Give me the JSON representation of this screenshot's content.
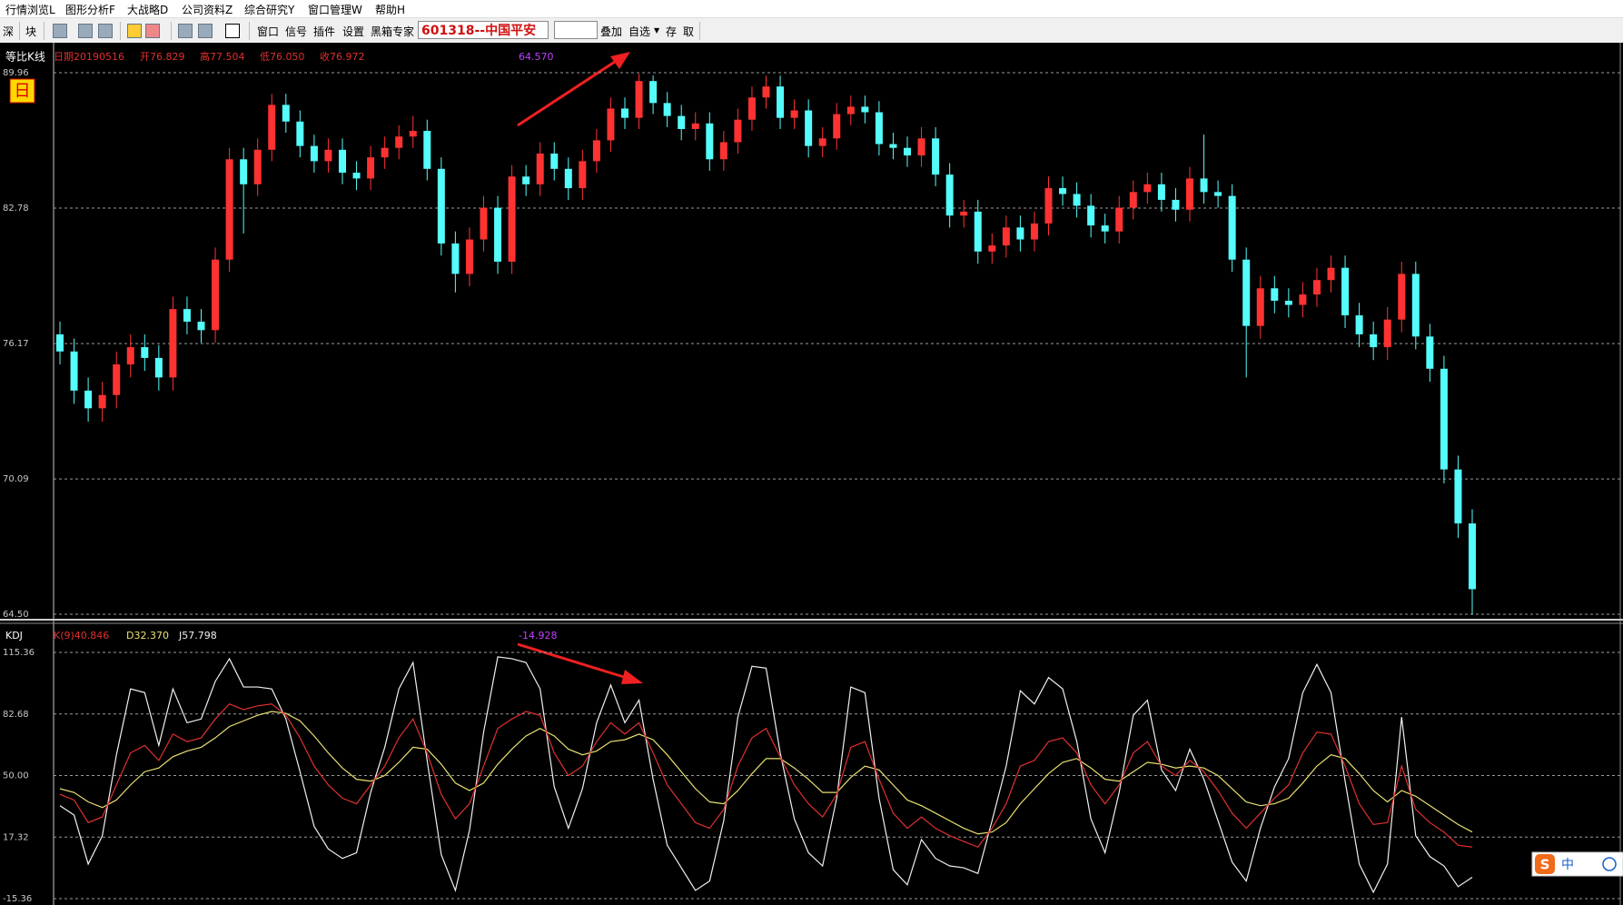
{
  "menu": [
    "行情浏览L",
    "图形分析F",
    "大战略D",
    "公司资料Z",
    "综合研究Y",
    "窗口管理W",
    "帮助H"
  ],
  "toolbar": {
    "left": [
      "深",
      "块"
    ],
    "tools": [
      "窗口",
      "信号",
      "插件",
      "设置",
      "黑箱专家"
    ],
    "stock": "601318--中国平安",
    "right": [
      "叠加",
      "自选",
      "存",
      "取"
    ]
  },
  "ime": {
    "logo": "S",
    "mode": "中"
  },
  "chart_data": [
    {
      "type": "candlestick",
      "title": "等比K线",
      "badge": "日",
      "info": [
        "日期20190516",
        "开76.829",
        "高77.504",
        "低76.050",
        "收76.972"
      ],
      "annotation": "64.570",
      "log_scale": true,
      "grid": true,
      "up_color": "#ff3232",
      "down_color": "#54fcfc",
      "ylim": [
        64.5,
        89.96
      ],
      "yticks": [
        89.96,
        82.78,
        76.17,
        70.09,
        {
          "value": 64.5,
          "label": "64.50"
        }
      ],
      "open": [
        76.6,
        75.8,
        74.0,
        73.2,
        73.8,
        75.2,
        76.0,
        75.5,
        74.6,
        77.8,
        77.2,
        76.8,
        80.2,
        85.3,
        84.0,
        85.8,
        88.2,
        87.3,
        86.0,
        85.2,
        85.8,
        84.6,
        84.3,
        85.4,
        85.9,
        86.5,
        86.8,
        84.8,
        81.0,
        79.5,
        81.2,
        82.8,
        80.1,
        84.4,
        84.0,
        85.6,
        84.8,
        83.8,
        85.2,
        86.3,
        88.0,
        87.5,
        89.5,
        88.3,
        87.6,
        86.9,
        87.2,
        85.3,
        86.2,
        87.4,
        88.6,
        89.2,
        87.5,
        87.9,
        86.0,
        86.4,
        87.7,
        88.1,
        87.8,
        86.1,
        85.9,
        85.5,
        86.4,
        84.5,
        82.4,
        82.6,
        80.6,
        80.9,
        81.8,
        81.2,
        82.0,
        83.8,
        83.5,
        82.9,
        81.9,
        81.6,
        82.8,
        83.6,
        84.0,
        83.2,
        82.7,
        84.3,
        83.6,
        83.4,
        80.2,
        77.0,
        78.8,
        78.2,
        78.0,
        78.5,
        79.2,
        79.8,
        77.5,
        76.6,
        76.0,
        77.3,
        79.5,
        76.5,
        75.0,
        70.5,
        68.2
      ],
      "high": [
        77.2,
        76.4,
        74.6,
        74.4,
        75.8,
        76.6,
        76.6,
        76.1,
        78.4,
        78.4,
        77.8,
        80.8,
        85.9,
        85.9,
        86.4,
        88.8,
        88.8,
        87.9,
        86.6,
        86.4,
        86.4,
        85.2,
        86.0,
        86.5,
        87.1,
        87.6,
        87.4,
        85.4,
        81.6,
        81.8,
        83.4,
        83.4,
        85.0,
        85.0,
        86.2,
        86.2,
        85.4,
        85.8,
        86.9,
        88.6,
        88.6,
        89.9,
        89.8,
        88.9,
        88.2,
        87.8,
        87.8,
        86.8,
        88.0,
        89.2,
        89.8,
        89.8,
        88.5,
        88.5,
        87.0,
        88.3,
        88.7,
        88.7,
        88.4,
        86.7,
        86.5,
        87.0,
        87.0,
        85.1,
        83.2,
        83.2,
        81.5,
        82.4,
        82.4,
        82.6,
        84.4,
        84.4,
        84.1,
        83.5,
        82.5,
        83.4,
        84.2,
        84.6,
        84.6,
        83.8,
        84.9,
        86.6,
        84.2,
        84.0,
        80.8,
        79.4,
        79.4,
        78.8,
        79.1,
        79.8,
        80.4,
        80.4,
        78.1,
        77.2,
        77.9,
        80.1,
        80.1,
        77.1,
        75.6,
        71.1,
        68.8
      ],
      "low": [
        75.2,
        73.4,
        72.6,
        72.6,
        73.2,
        74.6,
        74.9,
        74.0,
        74.0,
        76.6,
        76.2,
        76.2,
        79.6,
        81.5,
        83.4,
        85.2,
        86.7,
        85.4,
        84.6,
        84.6,
        84.0,
        83.7,
        83.7,
        84.8,
        85.3,
        85.9,
        84.2,
        80.4,
        78.6,
        78.9,
        80.6,
        79.5,
        79.5,
        83.4,
        83.4,
        84.2,
        83.2,
        83.2,
        84.6,
        85.7,
        86.9,
        86.9,
        87.7,
        87.0,
        86.3,
        86.3,
        84.7,
        84.7,
        85.6,
        86.8,
        88.0,
        86.9,
        86.9,
        85.4,
        85.4,
        85.8,
        87.1,
        87.2,
        85.5,
        85.3,
        84.9,
        84.9,
        83.9,
        81.8,
        81.8,
        80.0,
        80.0,
        80.3,
        80.6,
        80.6,
        81.4,
        82.9,
        82.3,
        81.3,
        81.0,
        81.0,
        82.2,
        83.0,
        82.6,
        82.1,
        82.1,
        83.0,
        82.8,
        79.6,
        74.6,
        76.4,
        77.6,
        77.4,
        77.4,
        77.9,
        78.6,
        76.9,
        76.0,
        75.4,
        75.4,
        76.7,
        75.9,
        74.4,
        69.9,
        67.6,
        64.5
      ],
      "close": [
        75.8,
        74.0,
        73.2,
        73.8,
        75.2,
        76.0,
        75.5,
        74.6,
        77.8,
        77.2,
        76.8,
        80.2,
        85.3,
        84.0,
        85.8,
        88.2,
        87.3,
        86.0,
        85.2,
        85.8,
        84.6,
        84.3,
        85.4,
        85.9,
        86.5,
        86.8,
        84.8,
        81.0,
        79.5,
        81.2,
        82.8,
        80.1,
        84.4,
        84.0,
        85.6,
        84.8,
        83.8,
        85.2,
        86.3,
        88.0,
        87.5,
        89.5,
        88.3,
        87.6,
        86.9,
        87.2,
        85.3,
        86.2,
        87.4,
        88.6,
        89.2,
        87.5,
        87.9,
        86.0,
        86.4,
        87.7,
        88.1,
        87.8,
        86.1,
        85.9,
        85.5,
        86.4,
        84.5,
        82.4,
        82.6,
        80.6,
        80.9,
        81.8,
        81.2,
        82.0,
        83.8,
        83.5,
        82.9,
        81.9,
        81.6,
        82.8,
        83.6,
        84.0,
        83.2,
        82.7,
        84.3,
        83.6,
        83.4,
        80.2,
        77.0,
        78.8,
        78.2,
        78.0,
        78.5,
        79.2,
        79.8,
        77.5,
        76.6,
        76.0,
        77.3,
        79.5,
        76.5,
        75.0,
        70.5,
        68.2,
        65.5
      ]
    },
    {
      "type": "line",
      "title": "KDJ",
      "annotation": "-14.928",
      "grid": true,
      "ylim": [
        -15.36,
        115.36
      ],
      "yticks": [
        115.36,
        82.68,
        {
          "value": 50,
          "label": "50.00"
        },
        17.32,
        -15.36
      ],
      "series": [
        {
          "name": "K(9)40.846",
          "color": "#e03030",
          "values": [
            40,
            37,
            25,
            28,
            45,
            62,
            66,
            58,
            72,
            68,
            70,
            80,
            88,
            85,
            87,
            88,
            82,
            70,
            55,
            45,
            38,
            35,
            45,
            55,
            70,
            80,
            62,
            40,
            27,
            35,
            55,
            75,
            80,
            84,
            82,
            62,
            50,
            55,
            68,
            78,
            72,
            78,
            62,
            45,
            35,
            25,
            22,
            32,
            55,
            70,
            75,
            60,
            45,
            35,
            28,
            40,
            65,
            68,
            48,
            30,
            22,
            28,
            22,
            18,
            15,
            12,
            22,
            35,
            55,
            58,
            68,
            70,
            62,
            45,
            35,
            45,
            62,
            68,
            55,
            50,
            58,
            52,
            42,
            30,
            22,
            30,
            38,
            45,
            62,
            73,
            72,
            55,
            35,
            24,
            25,
            55,
            32,
            25,
            20,
            13,
            12
          ]
        },
        {
          "name": "D32.370",
          "color": "#e8e070",
          "values": [
            43,
            41,
            36,
            33,
            37,
            45,
            52,
            54,
            60,
            63,
            65,
            70,
            76,
            79,
            82,
            84,
            83,
            79,
            71,
            62,
            54,
            48,
            47,
            50,
            57,
            65,
            64,
            56,
            46,
            42,
            46,
            56,
            64,
            71,
            75,
            71,
            64,
            61,
            63,
            68,
            69,
            72,
            69,
            61,
            52,
            43,
            36,
            35,
            42,
            51,
            59,
            59,
            54,
            48,
            41,
            41,
            49,
            55,
            53,
            45,
            37,
            34,
            30,
            26,
            22,
            19,
            20,
            25,
            35,
            43,
            51,
            57,
            59,
            54,
            48,
            47,
            52,
            57,
            56,
            54,
            55,
            54,
            50,
            43,
            36,
            34,
            35,
            38,
            46,
            55,
            61,
            59,
            51,
            42,
            36,
            42,
            39,
            34,
            29,
            24,
            20
          ]
        },
        {
          "name": "J57.798",
          "color": "#f0f0f0",
          "values": [
            34,
            29,
            3,
            18,
            61,
            96,
            94,
            66,
            96,
            78,
            80,
            100,
            112,
            97,
            97,
            96,
            80,
            52,
            23,
            11,
            6,
            9,
            41,
            65,
            96,
            110,
            58,
            8,
            -11,
            21,
            73,
            113,
            112,
            110,
            96,
            44,
            22,
            43,
            78,
            98,
            78,
            90,
            48,
            13,
            1,
            -11,
            -6,
            26,
            81,
            108,
            107,
            62,
            27,
            9,
            2,
            38,
            97,
            94,
            38,
            0,
            -8,
            16,
            6,
            2,
            1,
            -2,
            26,
            55,
            95,
            88,
            102,
            96,
            68,
            27,
            9,
            41,
            82,
            90,
            53,
            42,
            64,
            48,
            26,
            4,
            -6,
            22,
            44,
            59,
            94,
            109,
            94,
            47,
            3,
            -12,
            3,
            81,
            18,
            7,
            2,
            -9,
            -4
          ]
        }
      ]
    }
  ]
}
